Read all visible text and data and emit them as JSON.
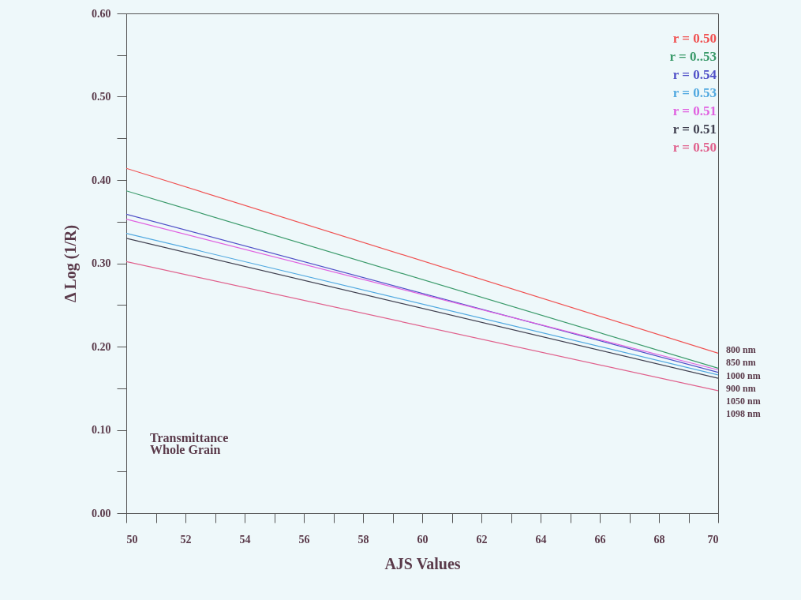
{
  "chart_data": {
    "type": "line",
    "xlabel": "AJS Values",
    "ylabel": "Δ Log (1/R)",
    "x": [
      50,
      70
    ],
    "series": [
      {
        "name": "r = 0.50",
        "color": "#f05050",
        "values": [
          0.414,
          0.192
        ]
      },
      {
        "name": "r = 0..53",
        "color": "#3a9a6a",
        "values": [
          0.387,
          0.174
        ]
      },
      {
        "name": "r = 0.54",
        "color": "#5050c8",
        "values": [
          0.359,
          0.169
        ]
      },
      {
        "name": "r = 0.53",
        "color": "#50a8e0",
        "values": [
          0.336,
          0.166
        ]
      },
      {
        "name": "r = 0.51",
        "color": "#e060e0",
        "values": [
          0.353,
          0.172
        ]
      },
      {
        "name": "r = 0.51",
        "color": "#404050",
        "values": [
          0.33,
          0.162
        ]
      },
      {
        "name": "r = 0.50",
        "color": "#e0608c",
        "values": [
          0.302,
          0.147
        ]
      }
    ],
    "xlim": [
      50,
      70
    ],
    "xticks": [
      50,
      {
        "value": 51,
        "label": null
      },
      52,
      {
        "value": 53,
        "label": null
      },
      54,
      {
        "value": 55,
        "label": null
      },
      56,
      {
        "value": 57,
        "label": null
      },
      58,
      {
        "value": 59,
        "label": null
      },
      60,
      {
        "value": 61,
        "label": null
      },
      62,
      {
        "value": 63,
        "label": null
      },
      64,
      {
        "value": 65,
        "label": null
      },
      66,
      {
        "value": 67,
        "label": null
      },
      68,
      {
        "value": 69,
        "label": null
      },
      70
    ],
    "ylim": [
      0,
      0.6
    ],
    "yticks": [
      {
        "value": 0,
        "label": "0.00"
      },
      {
        "value": 0.05,
        "label": null
      },
      {
        "value": 0.1,
        "label": "0.10"
      },
      {
        "value": 0.15,
        "label": null
      },
      {
        "value": 0.2,
        "label": "0.20"
      },
      {
        "value": 0.25,
        "label": null
      },
      {
        "value": 0.3,
        "label": "0.30"
      },
      {
        "value": 0.35,
        "label": null
      },
      {
        "value": 0.4,
        "label": "0.40"
      },
      {
        "value": 0.45,
        "label": null
      },
      {
        "value": 0.5,
        "label": "0.50"
      },
      {
        "value": 0.55,
        "label": null
      },
      {
        "value": 0.6,
        "label": "0.60"
      }
    ],
    "grid": false,
    "legend": "top right",
    "marker": "none",
    "line_style": "solid",
    "annotations": [
      "Transmittance",
      "Whole Grain",
      "800  nm",
      "850  nm",
      "1000  nm",
      "900  nm",
      "1050  nm",
      "1098  nm"
    ]
  }
}
